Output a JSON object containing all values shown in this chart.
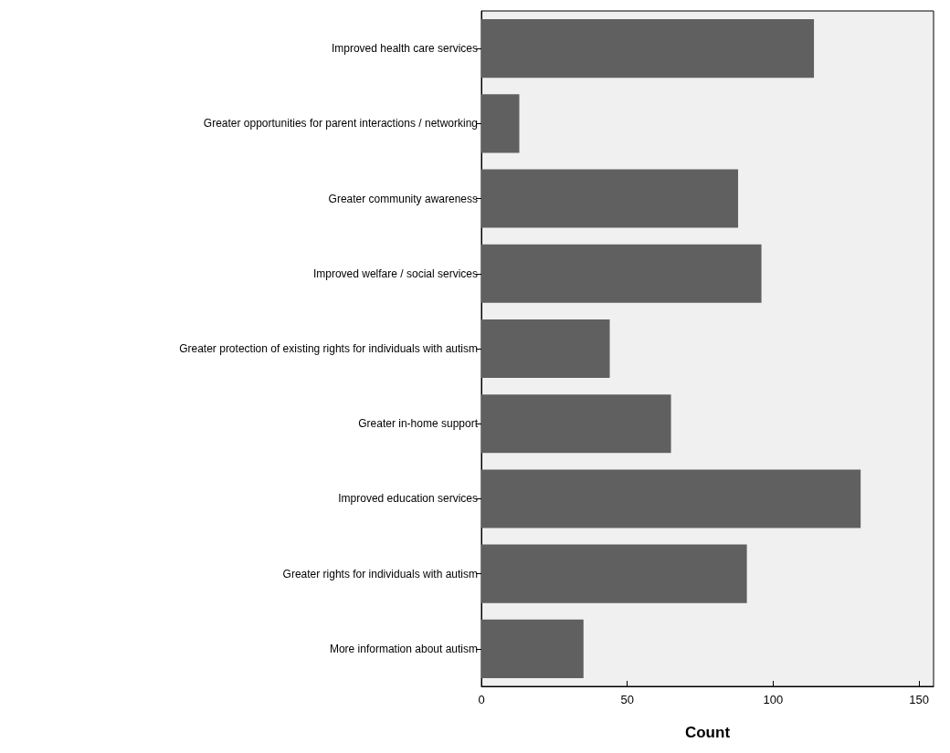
{
  "chart_data": {
    "type": "bar",
    "orientation": "horizontal",
    "xlabel": "Count",
    "categories": [
      "Improved health care services",
      "Greater opportunities for parent interactions / networking",
      "Greater community awareness",
      "Improved welfare / social services",
      "Greater protection of existing rights for individuals with autism",
      "Greater in-home support",
      "Improved education services",
      "Greater rights for individuals with autism",
      "More information about autism"
    ],
    "values": [
      114,
      13,
      88,
      96,
      44,
      65,
      130,
      91,
      35
    ],
    "color": "#606060",
    "xlim": [
      0,
      155
    ],
    "xticks": [
      0,
      50,
      100,
      150
    ],
    "grid": false
  }
}
